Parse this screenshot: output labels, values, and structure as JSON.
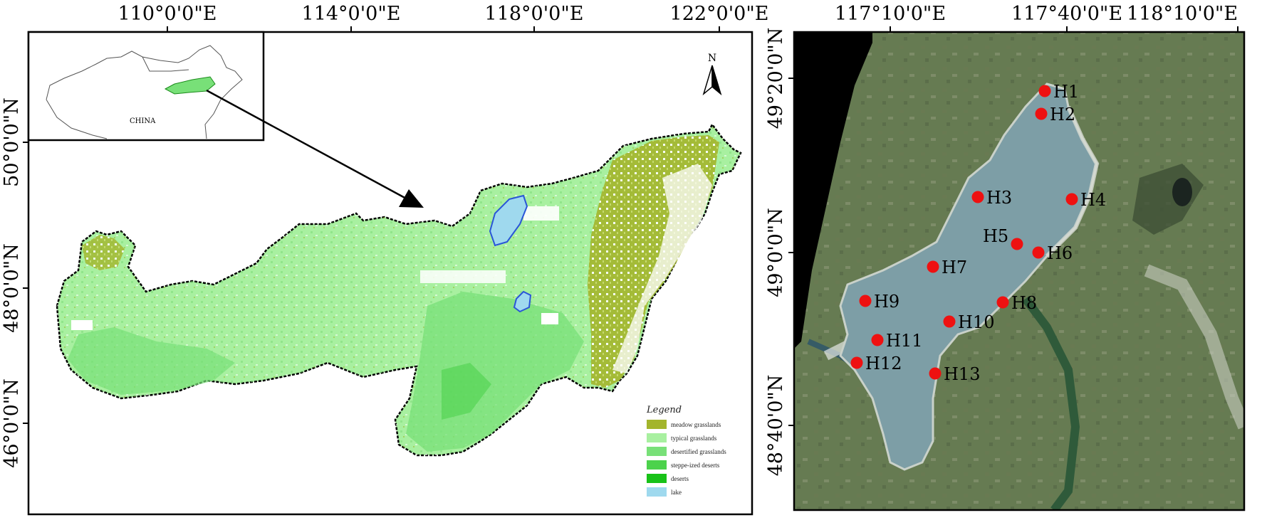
{
  "left_map": {
    "top_ticks": [
      "110°0'0\"E",
      "114°0'0\"E",
      "118°0'0\"E",
      "122°0'0\"E"
    ],
    "left_ticks": [
      "50°0'0\"N",
      "48°0'0\"N",
      "46°0'0\"N"
    ],
    "inset_label": "CHINA",
    "north_label": "N",
    "legend": {
      "title": "Legend",
      "items": [
        {
          "label": "meadow grasslands",
          "color": "#a3b52c"
        },
        {
          "label": "typical grasslands",
          "color": "#a8f0a0"
        },
        {
          "label": "desertified grasslands",
          "color": "#78e078"
        },
        {
          "label": "steppe-ized deserts",
          "color": "#4cd24c"
        },
        {
          "label": "deserts",
          "color": "#18c218"
        },
        {
          "label": "lake",
          "color": "#9fd9ee"
        }
      ]
    }
  },
  "right_map": {
    "top_ticks": [
      "117°10'0\"E",
      "117°40'0\"E",
      "118°10'0\"E"
    ],
    "left_ticks": [
      "49°20'0\"N",
      "49°0'0\"N",
      "48°40'0\"N"
    ],
    "sites": [
      "H1",
      "H2",
      "H3",
      "H4",
      "H5",
      "H6",
      "H7",
      "H8",
      "H9",
      "H10",
      "H11",
      "H12",
      "H13"
    ],
    "site_color": "#ee1111"
  }
}
